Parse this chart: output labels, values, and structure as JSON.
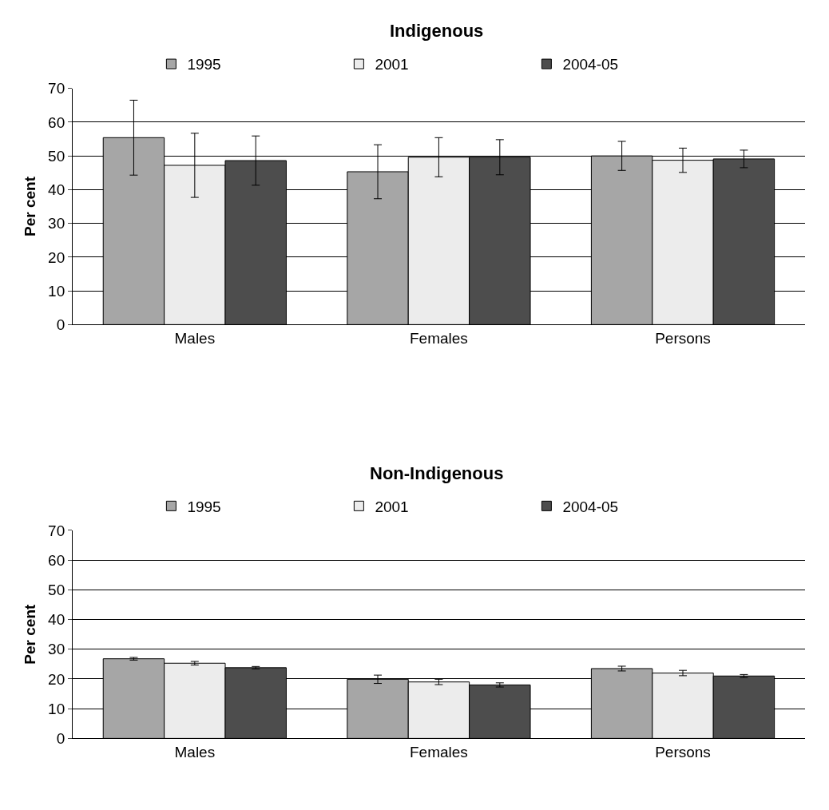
{
  "chart_data": [
    {
      "type": "bar",
      "title": "Indigenous",
      "ylabel": "Per cent",
      "categories": [
        "Males",
        "Females",
        "Persons"
      ],
      "ylim": [
        0,
        70
      ],
      "yticks": [
        0,
        10,
        20,
        30,
        40,
        50,
        60,
        70
      ],
      "grid": "y",
      "legend": "top",
      "series": [
        {
          "name": "1995",
          "color": "#a6a6a6",
          "values": [
            55.4,
            45.3,
            50.0
          ],
          "errors": [
            11.1,
            8.0,
            4.3
          ]
        },
        {
          "name": "2001",
          "color": "#ececec",
          "values": [
            47.2,
            49.6,
            48.7
          ],
          "errors": [
            9.5,
            5.8,
            3.6
          ]
        },
        {
          "name": "2004-05",
          "color": "#4d4d4d",
          "values": [
            48.6,
            49.6,
            49.1
          ],
          "errors": [
            7.3,
            5.2,
            2.6
          ]
        }
      ]
    },
    {
      "type": "bar",
      "title": "Non-Indigenous",
      "ylabel": "Per cent",
      "categories": [
        "Males",
        "Females",
        "Persons"
      ],
      "ylim": [
        0,
        70
      ],
      "yticks": [
        0,
        10,
        20,
        30,
        40,
        50,
        60,
        70
      ],
      "grid": "y",
      "legend": "top",
      "series": [
        {
          "name": "1995",
          "color": "#a6a6a6",
          "values": [
            26.8,
            19.9,
            23.5
          ],
          "errors": [
            0.45,
            1.4,
            0.8
          ]
        },
        {
          "name": "2001",
          "color": "#ececec",
          "values": [
            25.3,
            19.0,
            22.0
          ],
          "errors": [
            0.6,
            0.9,
            0.9
          ]
        },
        {
          "name": "2004-05",
          "color": "#4d4d4d",
          "values": [
            23.8,
            18.0,
            21.0
          ],
          "errors": [
            0.4,
            0.7,
            0.5
          ]
        }
      ]
    }
  ]
}
